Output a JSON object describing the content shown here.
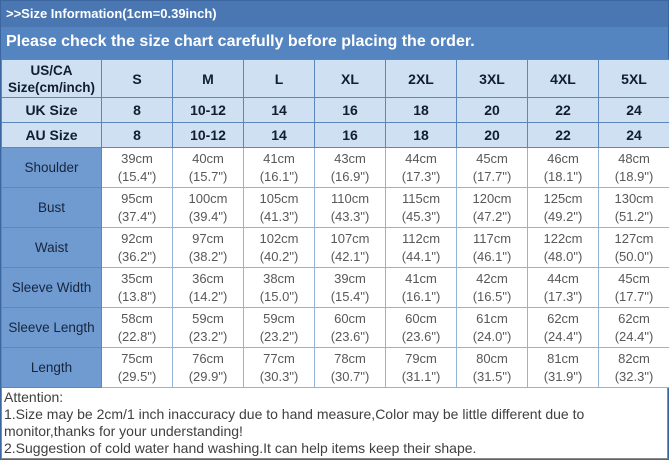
{
  "banner": {
    "line1": ">>Size Information(1cm=0.39inch)",
    "line2": "Please check the size chart carefully before placing the order."
  },
  "table": {
    "corner": "US/CA\nSize(cm/inch)",
    "sizes": [
      "S",
      "M",
      "L",
      "XL",
      "2XL",
      "3XL",
      "4XL",
      "5XL"
    ],
    "uk": {
      "label": "UK Size",
      "values": [
        "8",
        "10-12",
        "14",
        "16",
        "18",
        "20",
        "22",
        "24"
      ]
    },
    "au": {
      "label": "AU Size",
      "values": [
        "8",
        "10-12",
        "14",
        "16",
        "18",
        "20",
        "22",
        "24"
      ]
    },
    "rows": [
      {
        "label": "Shoulder",
        "cells": [
          "39cm\n(15.4\")",
          "40cm\n(15.7\")",
          "41cm\n(16.1\")",
          "43cm\n(16.9\")",
          "44cm\n(17.3\")",
          "45cm\n(17.7\")",
          "46cm\n(18.1\")",
          "48cm\n(18.9\")"
        ]
      },
      {
        "label": "Bust",
        "cells": [
          "95cm\n(37.4\")",
          "100cm\n(39.4\")",
          "105cm\n(41.3\")",
          "110cm\n(43.3\")",
          "115cm\n(45.3\")",
          "120cm\n(47.2\")",
          "125cm\n(49.2\")",
          "130cm\n(51.2\")"
        ]
      },
      {
        "label": "Waist",
        "cells": [
          "92cm\n(36.2\")",
          "97cm\n(38.2\")",
          "102cm\n(40.2\")",
          "107cm\n(42.1\")",
          "112cm\n(44.1\")",
          "117cm\n(46.1\")",
          "122cm\n(48.0\")",
          "127cm\n(50.0\")"
        ]
      },
      {
        "label": "Sleeve Width",
        "cells": [
          "35cm\n(13.8\")",
          "36cm\n(14.2\")",
          "38cm\n(15.0\")",
          "39cm\n(15.4\")",
          "41cm\n(16.1\")",
          "42cm\n(16.5\")",
          "44cm\n(17.3\")",
          "45cm\n(17.7\")"
        ]
      },
      {
        "label": "Sleeve Length",
        "cells": [
          "58cm\n(22.8\")",
          "59cm\n(23.2\")",
          "59cm\n(23.2\")",
          "60cm\n(23.6\")",
          "60cm\n(23.6\")",
          "61cm\n(24.0\")",
          "62cm\n(24.4\")",
          "62cm\n(24.4\")"
        ]
      },
      {
        "label": "Length",
        "cells": [
          "75cm\n(29.5\")",
          "76cm\n(29.9\")",
          "77cm\n(30.3\")",
          "78cm\n(30.7\")",
          "79cm\n(31.1\")",
          "80cm\n(31.5\")",
          "81cm\n(31.9\")",
          "82cm\n(32.3\")"
        ]
      }
    ]
  },
  "attention": {
    "title": "Attention:",
    "line1": "1.Size may be 2cm/1 inch inaccuracy due to hand measure,Color may be little different due to monitor,thanks for your understanding!",
    "line2": "2.Suggestion of cold water hand washing.It can help items keep their shape."
  },
  "colors": {
    "banner_top": "#4a77b2",
    "banner_main": "#5585c1",
    "header_bg": "#cfe0f2",
    "header_text": "#121d30",
    "header_border": "#5b87bb",
    "label_bg": "#6f9bd1",
    "label_text": "#17253c",
    "data_text": "#585858",
    "data_border": "#95b3d7",
    "note_text": "#3f3f3f",
    "note_border": "#8a8a8a",
    "strip": "#76a0ce",
    "frame_border": "#3c66a0"
  }
}
